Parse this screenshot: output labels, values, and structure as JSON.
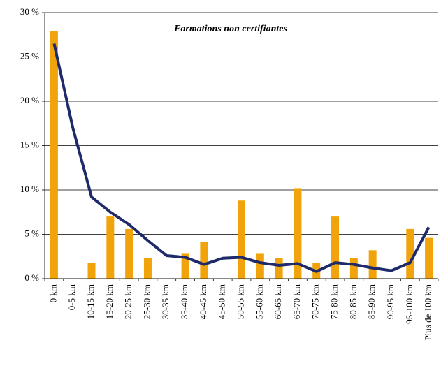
{
  "chart_data": {
    "type": "bar_line",
    "title": "Formations non certifiantes",
    "categories": [
      "0 km",
      "0-5 km",
      "10-15 km",
      "15-20 km",
      "20-25 km",
      "25-30 km",
      "30-35 km",
      "35-40 km",
      "40-45 km",
      "45-50 km",
      "50-55 km",
      "55-60 km",
      "60-65 km",
      "65-70 km",
      "70-75 km",
      "75-80 km",
      "80-85 km",
      "85-90 km",
      "90-95 km",
      "95-100 km",
      "Plus de 100 km"
    ],
    "series": [
      {
        "type": "bar",
        "color": "#f0a30a",
        "values": [
          27.9,
          0,
          1.8,
          7.0,
          5.6,
          2.3,
          0,
          2.8,
          4.1,
          0,
          8.8,
          2.8,
          2.3,
          10.2,
          1.8,
          7.0,
          2.3,
          3.2,
          0,
          5.6,
          4.6
        ]
      },
      {
        "type": "line",
        "color": "#1f2a6b",
        "values": [
          26.5,
          17.0,
          9.2,
          7.5,
          6.1,
          4.3,
          2.6,
          2.4,
          1.6,
          2.3,
          2.4,
          1.8,
          1.5,
          1.7,
          0.8,
          1.8,
          1.6,
          1.2,
          0.9,
          1.8,
          5.8
        ]
      }
    ],
    "ylim": [
      0,
      30
    ],
    "yticks": [
      {
        "value": 0,
        "label": "0 %"
      },
      {
        "value": 5,
        "label": "5 %"
      },
      {
        "value": 10,
        "label": "10 %"
      },
      {
        "value": 15,
        "label": "15 %"
      },
      {
        "value": 20,
        "label": "20 %"
      },
      {
        "value": 25,
        "label": "25 %"
      },
      {
        "value": 30,
        "label": "30 %"
      }
    ],
    "grid": true
  }
}
